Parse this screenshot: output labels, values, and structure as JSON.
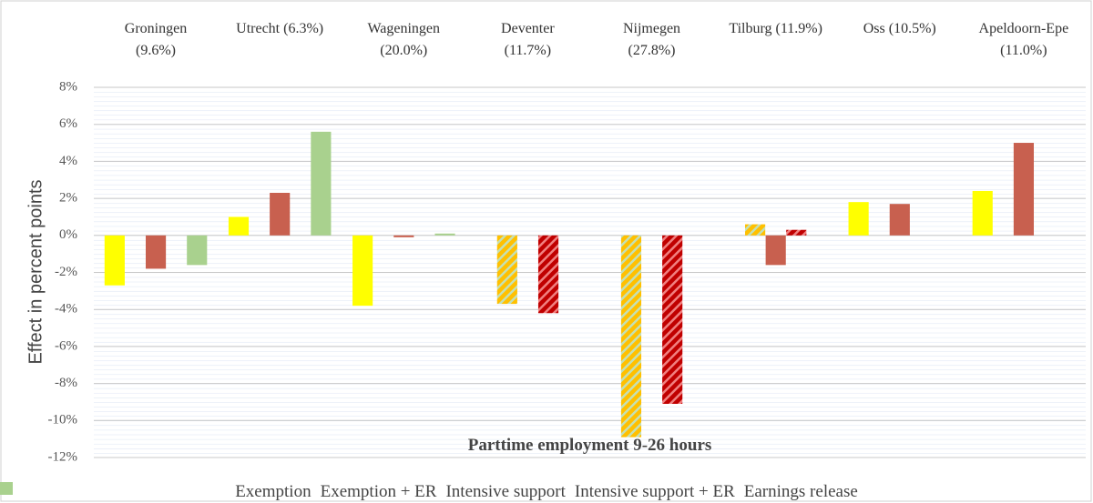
{
  "chart_data": {
    "type": "bar",
    "x_title": "Parttime employment 9-26 hours",
    "y_title": "Effect in percent points",
    "categories": [
      "Groningen\n(9.6%)",
      "Utrecht (6.3%)",
      "Wageningen\n(20.0%)",
      "Deventer\n(11.7%)",
      "Nijmegen\n(27.8%)",
      "Tilburg (11.9%)",
      "Oss (10.5%)",
      "Apeldoorn-Epe\n(11.0%)"
    ],
    "series": [
      {
        "name": "Exemption",
        "color": "#ffff00",
        "values": [
          -2.7,
          1.0,
          -3.8,
          null,
          null,
          null,
          1.8,
          2.4
        ]
      },
      {
        "name": "Exemption + ER",
        "color": "#ffc000",
        "hatch_color": "#c5e0b4",
        "values": [
          null,
          null,
          null,
          -3.7,
          -10.9,
          0.6,
          null,
          null
        ]
      },
      {
        "name": "Intensive support",
        "color": "#c8604f",
        "values": [
          -1.8,
          2.3,
          -0.1,
          null,
          null,
          -1.6,
          1.7,
          5.0
        ]
      },
      {
        "name": "Intensive support + ER",
        "color": "#c00000",
        "hatch_color": "#f08080",
        "values": [
          null,
          null,
          null,
          -4.2,
          -9.1,
          0.3,
          null,
          null
        ]
      },
      {
        "name": "Earnings release",
        "color": "#a9d18e",
        "values": [
          -1.6,
          5.6,
          0.1,
          null,
          null,
          null,
          null,
          null
        ]
      }
    ],
    "ylim": [
      -12,
      8
    ],
    "yticks": [
      {
        "value": -12,
        "label": "-12%"
      },
      {
        "value": -10,
        "label": "-10%"
      },
      {
        "value": -8,
        "label": "-8%"
      },
      {
        "value": -6,
        "label": "-6%"
      },
      {
        "value": -4,
        "label": "-4%"
      },
      {
        "value": -2,
        "label": "-2%"
      },
      {
        "value": 0,
        "label": "0%"
      },
      {
        "value": 2,
        "label": "2%"
      },
      {
        "value": 4,
        "label": "4%"
      },
      {
        "value": 6,
        "label": "6%"
      },
      {
        "value": 8,
        "label": "8%"
      }
    ],
    "grid": true
  }
}
